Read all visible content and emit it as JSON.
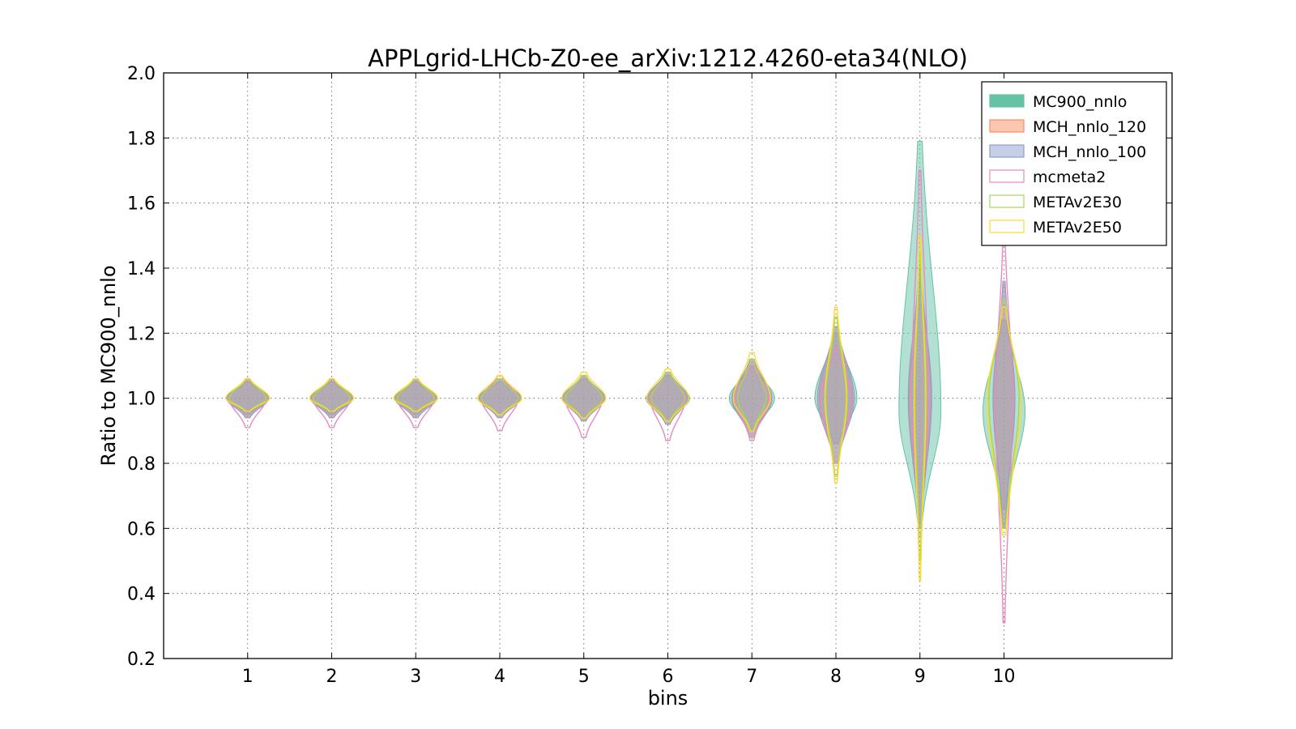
{
  "chart_data": {
    "type": "violin",
    "title": "APPLgrid-LHCb-Z0-ee_arXiv:1212.4260-eta34(NLO)",
    "xlabel": "bins",
    "ylabel": "Ratio to MC900_nnlo",
    "ylim": [
      0.2,
      2.0
    ],
    "xlim": [
      0,
      12
    ],
    "grid": true,
    "legend_position": "upper right",
    "categories": [
      "1",
      "2",
      "3",
      "4",
      "5",
      "6",
      "7",
      "8",
      "9",
      "10"
    ],
    "yticks": [
      "0.2",
      "0.4",
      "0.6",
      "0.8",
      "1.0",
      "1.2",
      "1.4",
      "1.6",
      "1.8",
      "2.0"
    ],
    "series": [
      {
        "name": "MC900_nnlo",
        "fill": "#66c2a5",
        "edge": "#66c2a5",
        "filled": true,
        "min": [
          0.95,
          0.95,
          0.95,
          0.95,
          0.94,
          0.93,
          0.9,
          0.86,
          0.62,
          0.66
        ],
        "max": [
          1.05,
          1.05,
          1.05,
          1.05,
          1.06,
          1.07,
          1.1,
          1.2,
          1.79,
          1.24
        ],
        "center": [
          1.0,
          1.0,
          1.0,
          1.0,
          1.0,
          1.0,
          1.0,
          1.0,
          0.96,
          0.96
        ],
        "halfwidth": [
          0.25,
          0.25,
          0.25,
          0.25,
          0.26,
          0.26,
          0.27,
          0.25,
          0.25,
          0.25
        ]
      },
      {
        "name": "MCH_nnlo_120",
        "fill": "#fc8d62",
        "edge": "#fc8d62",
        "filled": true,
        "min": [
          0.94,
          0.94,
          0.94,
          0.94,
          0.93,
          0.92,
          0.88,
          0.8,
          0.6,
          0.6
        ],
        "max": [
          1.06,
          1.06,
          1.06,
          1.06,
          1.07,
          1.08,
          1.12,
          1.22,
          1.4,
          1.35
        ],
        "center": [
          1.0,
          1.0,
          1.0,
          1.0,
          1.0,
          1.0,
          1.0,
          1.0,
          1.0,
          1.0
        ],
        "halfwidth": [
          0.25,
          0.25,
          0.25,
          0.25,
          0.25,
          0.24,
          0.23,
          0.2,
          0.13,
          0.13
        ]
      },
      {
        "name": "MCH_nnlo_100",
        "fill": "#8da0cb",
        "edge": "#8da0cb",
        "filled": true,
        "min": [
          0.94,
          0.94,
          0.94,
          0.94,
          0.93,
          0.92,
          0.88,
          0.8,
          0.6,
          0.6
        ],
        "max": [
          1.06,
          1.06,
          1.06,
          1.06,
          1.07,
          1.08,
          1.12,
          1.22,
          1.4,
          1.36
        ],
        "center": [
          1.0,
          1.0,
          1.0,
          1.0,
          1.0,
          1.0,
          1.0,
          1.0,
          1.0,
          1.0
        ],
        "halfwidth": [
          0.25,
          0.25,
          0.25,
          0.25,
          0.25,
          0.24,
          0.24,
          0.22,
          0.14,
          0.13
        ]
      },
      {
        "name": "mcmeta2",
        "fill": "#e78ac3",
        "edge": "#e78ac3",
        "filled": false,
        "min": [
          0.91,
          0.91,
          0.91,
          0.9,
          0.88,
          0.87,
          0.87,
          0.8,
          0.58,
          0.31
        ],
        "max": [
          1.06,
          1.06,
          1.06,
          1.07,
          1.07,
          1.08,
          1.1,
          1.15,
          1.7,
          1.51
        ],
        "center": [
          1.0,
          1.0,
          1.0,
          1.0,
          1.0,
          1.0,
          1.0,
          1.0,
          1.0,
          1.0
        ],
        "halfwidth": [
          0.22,
          0.22,
          0.22,
          0.22,
          0.22,
          0.21,
          0.2,
          0.19,
          0.1,
          0.1
        ]
      },
      {
        "name": "METAv2E30",
        "fill": "#a6d854",
        "edge": "#a6d854",
        "filled": false,
        "min": [
          0.96,
          0.96,
          0.96,
          0.95,
          0.94,
          0.93,
          0.9,
          0.76,
          0.5,
          0.6
        ],
        "max": [
          1.06,
          1.06,
          1.06,
          1.06,
          1.07,
          1.08,
          1.12,
          1.25,
          1.45,
          1.3
        ],
        "center": [
          1.0,
          1.0,
          1.0,
          1.0,
          1.0,
          1.0,
          1.0,
          1.0,
          1.0,
          1.0
        ],
        "halfwidth": [
          0.22,
          0.22,
          0.22,
          0.22,
          0.22,
          0.2,
          0.17,
          0.12,
          0.06,
          0.18
        ]
      },
      {
        "name": "METAv2E50",
        "fill": "#ffd92f",
        "edge": "#ffd92f",
        "filled": false,
        "min": [
          0.96,
          0.96,
          0.96,
          0.95,
          0.94,
          0.93,
          0.9,
          0.74,
          0.44,
          0.58
        ],
        "max": [
          1.06,
          1.06,
          1.06,
          1.07,
          1.08,
          1.09,
          1.14,
          1.28,
          1.5,
          1.28
        ],
        "center": [
          1.0,
          1.0,
          1.0,
          1.0,
          1.0,
          1.0,
          1.0,
          1.0,
          1.0,
          1.0
        ],
        "halfwidth": [
          0.26,
          0.26,
          0.26,
          0.26,
          0.26,
          0.25,
          0.22,
          0.13,
          0.07,
          0.2
        ]
      }
    ]
  }
}
